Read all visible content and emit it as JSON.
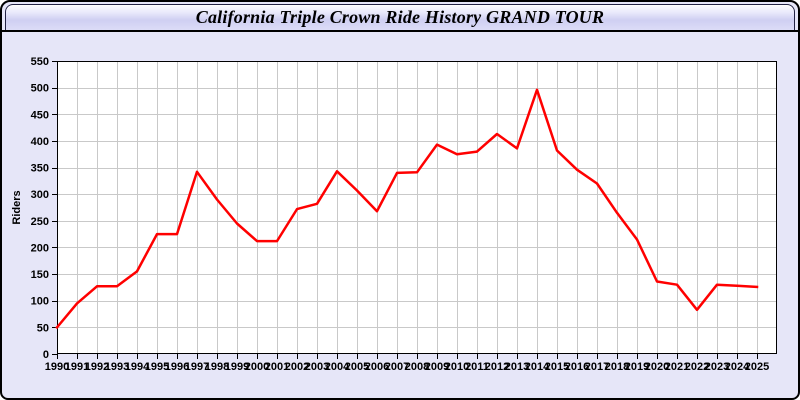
{
  "window": {
    "title": "California Triple Crown Ride History GRAND TOUR"
  },
  "colors": {
    "background": "#e6e6f8",
    "plot_background": "#ffffff",
    "grid": "#c9c9c9",
    "axis_border": "#000000",
    "line": "#ff0000",
    "tick_text": "#000000"
  },
  "chart_data": {
    "type": "line",
    "title": "California Triple Crown Ride History GRAND TOUR",
    "xlabel": "",
    "ylabel": "Riders",
    "ylim": [
      0,
      550
    ],
    "ytick_step": 50,
    "grid": true,
    "legend_position": "none",
    "categories": [
      1990,
      1991,
      1992,
      1993,
      1994,
      1995,
      1996,
      1997,
      1998,
      1999,
      2000,
      2001,
      2002,
      2003,
      2004,
      2005,
      2006,
      2007,
      2008,
      2009,
      2010,
      2011,
      2012,
      2013,
      2014,
      2015,
      2016,
      2017,
      2018,
      2019,
      2020,
      2021,
      2022,
      2023,
      2024,
      2025
    ],
    "series": [
      {
        "name": "Riders",
        "values": [
          50,
          95,
          127,
          127,
          155,
          225,
          225,
          342,
          290,
          245,
          212,
          212,
          272,
          282,
          343,
          307,
          268,
          340,
          341,
          393,
          375,
          380,
          413,
          386,
          496,
          382,
          346,
          320,
          265,
          215,
          136,
          130,
          83,
          130,
          128,
          126
        ]
      }
    ]
  }
}
